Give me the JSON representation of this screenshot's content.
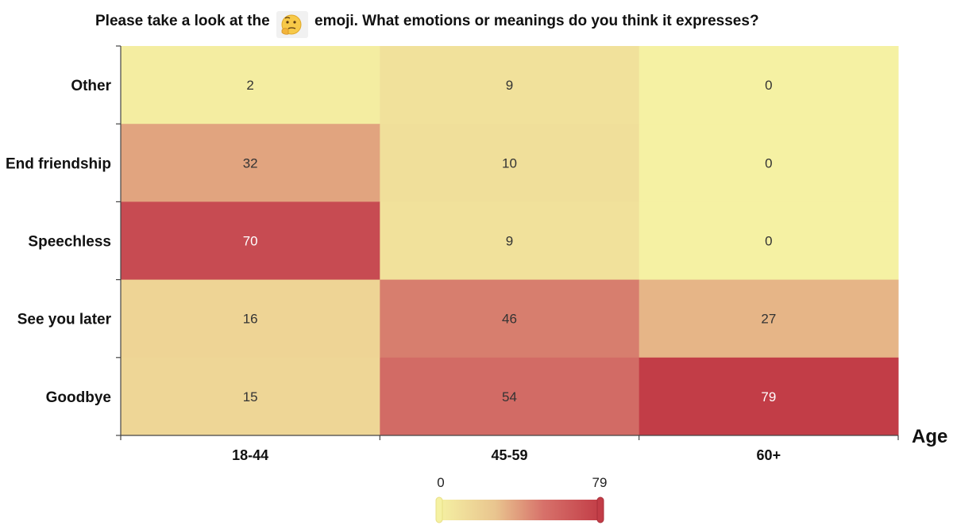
{
  "chart_data": {
    "type": "heatmap",
    "title_before": "Please take a look at the",
    "title_after": "emoji. What emotions or meanings do you think it expresses?",
    "emoji": "thinking-face",
    "rows": [
      "Other",
      "End friendship",
      "Speechless",
      "See you later",
      "Goodbye"
    ],
    "columns": [
      "18-44",
      "45-59",
      "60+"
    ],
    "values": [
      [
        2,
        9,
        0
      ],
      [
        32,
        10,
        0
      ],
      [
        70,
        9,
        0
      ],
      [
        16,
        46,
        27
      ],
      [
        15,
        54,
        79
      ]
    ],
    "xlabel": "Age",
    "visual_map": {
      "min": 0,
      "max": 79,
      "min_label": "0",
      "max_label": "79"
    },
    "colors": {
      "low": "#f5f1a3",
      "mid": "#e9c58f",
      "high": "#c23d47"
    }
  }
}
